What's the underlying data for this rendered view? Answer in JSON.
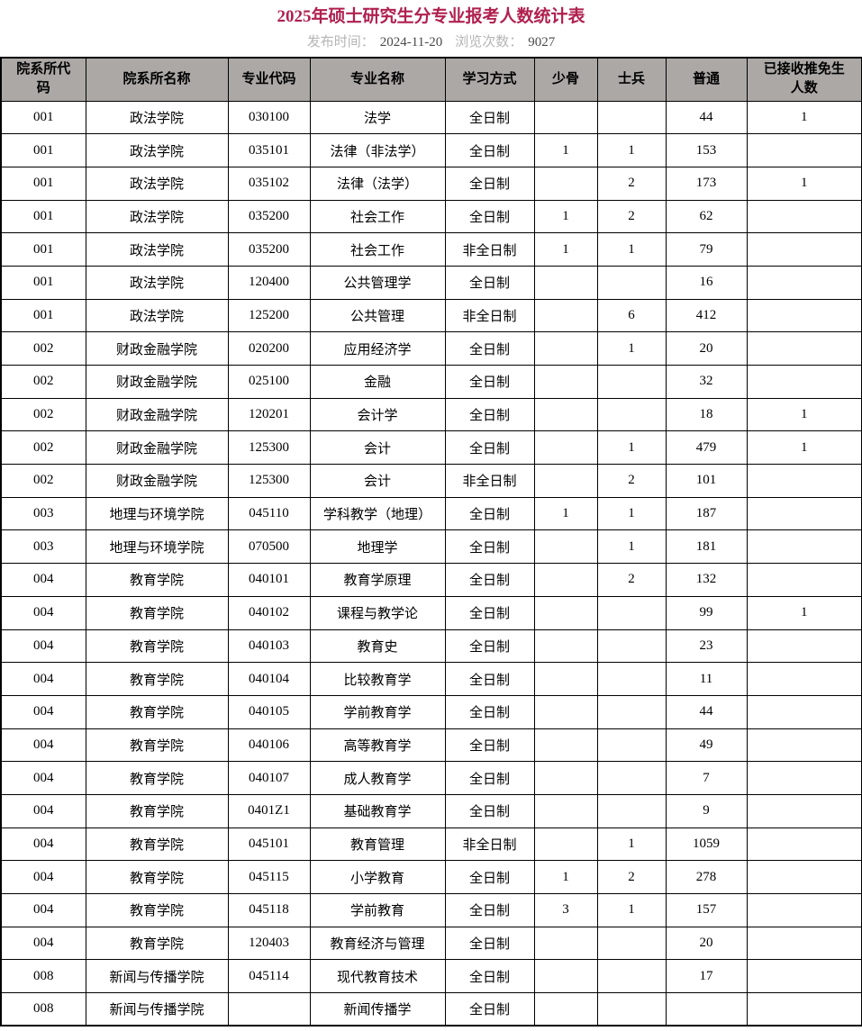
{
  "page": {
    "title": "2025年硕士研究生分专业报考人数统计表",
    "meta": {
      "published_label": "发布时间：",
      "published_value": "2024-11-20",
      "views_label": "浏览次数：",
      "views_value": "9027"
    }
  },
  "colors": {
    "title": "#b0204f",
    "meta_label": "#b5b5b5",
    "meta_value": "#4a4a4a",
    "header_bg": "#aba8a6",
    "border": "#000000"
  },
  "table": {
    "columns": [
      "院系所代码",
      "院系所名称",
      "专业代码",
      "专业名称",
      "学习方式",
      "少骨",
      "士兵",
      "普通",
      "已接收推免生人数"
    ],
    "rows": [
      [
        "001",
        "政法学院",
        "030100",
        "法学",
        "全日制",
        "",
        "",
        "44",
        "1"
      ],
      [
        "001",
        "政法学院",
        "035101",
        "法律（非法学）",
        "全日制",
        "1",
        "1",
        "153",
        ""
      ],
      [
        "001",
        "政法学院",
        "035102",
        "法律（法学）",
        "全日制",
        "",
        "2",
        "173",
        "1"
      ],
      [
        "001",
        "政法学院",
        "035200",
        "社会工作",
        "全日制",
        "1",
        "2",
        "62",
        ""
      ],
      [
        "001",
        "政法学院",
        "035200",
        "社会工作",
        "非全日制",
        "1",
        "1",
        "79",
        ""
      ],
      [
        "001",
        "政法学院",
        "120400",
        "公共管理学",
        "全日制",
        "",
        "",
        "16",
        ""
      ],
      [
        "001",
        "政法学院",
        "125200",
        "公共管理",
        "非全日制",
        "",
        "6",
        "412",
        ""
      ],
      [
        "002",
        "财政金融学院",
        "020200",
        "应用经济学",
        "全日制",
        "",
        "1",
        "20",
        ""
      ],
      [
        "002",
        "财政金融学院",
        "025100",
        "金融",
        "全日制",
        "",
        "",
        "32",
        ""
      ],
      [
        "002",
        "财政金融学院",
        "120201",
        "会计学",
        "全日制",
        "",
        "",
        "18",
        "1"
      ],
      [
        "002",
        "财政金融学院",
        "125300",
        "会计",
        "全日制",
        "",
        "1",
        "479",
        "1"
      ],
      [
        "002",
        "财政金融学院",
        "125300",
        "会计",
        "非全日制",
        "",
        "2",
        "101",
        ""
      ],
      [
        "003",
        "地理与环境学院",
        "045110",
        "学科教学（地理）",
        "全日制",
        "1",
        "1",
        "187",
        ""
      ],
      [
        "003",
        "地理与环境学院",
        "070500",
        "地理学",
        "全日制",
        "",
        "1",
        "181",
        ""
      ],
      [
        "004",
        "教育学院",
        "040101",
        "教育学原理",
        "全日制",
        "",
        "2",
        "132",
        ""
      ],
      [
        "004",
        "教育学院",
        "040102",
        "课程与教学论",
        "全日制",
        "",
        "",
        "99",
        "1"
      ],
      [
        "004",
        "教育学院",
        "040103",
        "教育史",
        "全日制",
        "",
        "",
        "23",
        ""
      ],
      [
        "004",
        "教育学院",
        "040104",
        "比较教育学",
        "全日制",
        "",
        "",
        "11",
        ""
      ],
      [
        "004",
        "教育学院",
        "040105",
        "学前教育学",
        "全日制",
        "",
        "",
        "44",
        ""
      ],
      [
        "004",
        "教育学院",
        "040106",
        "高等教育学",
        "全日制",
        "",
        "",
        "49",
        ""
      ],
      [
        "004",
        "教育学院",
        "040107",
        "成人教育学",
        "全日制",
        "",
        "",
        "7",
        ""
      ],
      [
        "004",
        "教育学院",
        "0401Z1",
        "基础教育学",
        "全日制",
        "",
        "",
        "9",
        ""
      ],
      [
        "004",
        "教育学院",
        "045101",
        "教育管理",
        "非全日制",
        "",
        "1",
        "1059",
        ""
      ],
      [
        "004",
        "教育学院",
        "045115",
        "小学教育",
        "全日制",
        "1",
        "2",
        "278",
        ""
      ],
      [
        "004",
        "教育学院",
        "045118",
        "学前教育",
        "全日制",
        "3",
        "1",
        "157",
        ""
      ],
      [
        "004",
        "教育学院",
        "120403",
        "教育经济与管理",
        "全日制",
        "",
        "",
        "20",
        ""
      ],
      [
        "008",
        "新闻与传播学院",
        "045114",
        "现代教育技术",
        "全日制",
        "",
        "",
        "17",
        ""
      ],
      [
        "008",
        "新闻与传播学院",
        "",
        "新闻传播学",
        "全日制",
        "",
        "",
        "",
        ""
      ]
    ]
  }
}
